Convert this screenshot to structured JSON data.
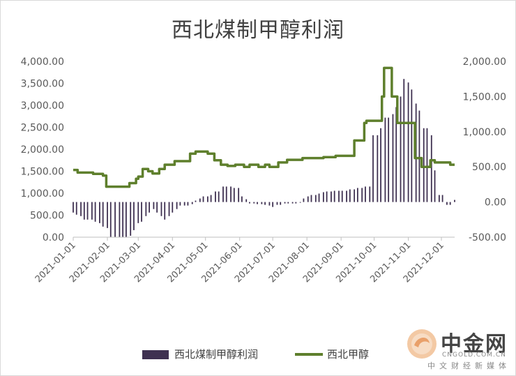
{
  "chart_data": {
    "type": "bar+line",
    "title": "西北煤制甲醇利润",
    "left_axis": {
      "ylim": [
        0,
        4000
      ],
      "ticks": [
        "4,000.00",
        "3,500.00",
        "3,000.00",
        "2,500.00",
        "2,000.00",
        "1,500.00",
        "1,000.00",
        "500.00",
        "0.00"
      ]
    },
    "right_axis": {
      "ylim": [
        -500,
        2000
      ],
      "ticks": [
        "2,000.00",
        "1,500.00",
        "1,000.00",
        "500.00",
        "0.00",
        "-500.00"
      ]
    },
    "x_labels": [
      "2021-01-01",
      "2021-02-01",
      "2021-03-01",
      "2021-04-01",
      "2021-05-01",
      "2021-06-01",
      "2021-07-01",
      "2021-08-01",
      "2021-09-01",
      "2021-10-01",
      "2021-11-01",
      "2021-12-01"
    ],
    "x_label_days": [
      0,
      31,
      59,
      90,
      120,
      151,
      181,
      212,
      243,
      273,
      304,
      334
    ],
    "grid": false,
    "legend_position": "bottom",
    "series": [
      {
        "name": "西北煤制甲醇利润",
        "kind": "bar",
        "axis": "right",
        "color": "#3f3151",
        "day": [
          0,
          3,
          7,
          10,
          13,
          17,
          20,
          24,
          27,
          31,
          34,
          38,
          42,
          45,
          48,
          52,
          55,
          59,
          62,
          66,
          69,
          73,
          76,
          80,
          83,
          87,
          90,
          94,
          97,
          101,
          104,
          108,
          111,
          115,
          118,
          122,
          125,
          129,
          132,
          136,
          139,
          143,
          146,
          150,
          153,
          157,
          160,
          164,
          167,
          171,
          174,
          178,
          181,
          185,
          188,
          192,
          195,
          199,
          202,
          206,
          209,
          213,
          216,
          220,
          223,
          227,
          230,
          234,
          237,
          241,
          244,
          248,
          251,
          255,
          258,
          262,
          265,
          269,
          272,
          276,
          279,
          283,
          286,
          290,
          293,
          297,
          300,
          304,
          307,
          311,
          314,
          318,
          321,
          325,
          328,
          332,
          335,
          339,
          342,
          346
        ],
        "values": [
          -150,
          -180,
          -200,
          -250,
          -250,
          -250,
          -280,
          -300,
          -350,
          -370,
          -500,
          -500,
          -500,
          -500,
          -500,
          -480,
          -400,
          -300,
          -280,
          -200,
          -150,
          -100,
          -150,
          -200,
          -250,
          -200,
          -150,
          -100,
          -50,
          -50,
          -50,
          -30,
          20,
          50,
          80,
          80,
          100,
          150,
          150,
          220,
          220,
          220,
          200,
          200,
          80,
          40,
          -20,
          -20,
          -30,
          -30,
          -40,
          -50,
          -70,
          -40,
          -40,
          -20,
          -20,
          -20,
          -20,
          -10,
          50,
          80,
          100,
          100,
          120,
          140,
          150,
          150,
          160,
          160,
          160,
          160,
          180,
          180,
          200,
          200,
          220,
          220,
          950,
          950,
          1050,
          1200,
          1200,
          1250,
          1350,
          1500,
          1750,
          1700,
          1600,
          1400,
          1300,
          1050,
          1050,
          950,
          450,
          100,
          100,
          -40,
          -40,
          30,
          50,
          30,
          20,
          30,
          10,
          -40,
          -50,
          -50,
          -50
        ]
      },
      {
        "name": "西北甲醇",
        "kind": "line",
        "axis": "left",
        "color": "#5e7f2c",
        "day": [
          0,
          4,
          4,
          11,
          11,
          18,
          18,
          27,
          27,
          30,
          30,
          37,
          37,
          51,
          51,
          57,
          57,
          59,
          59,
          63,
          63,
          68,
          68,
          72,
          72,
          78,
          78,
          83,
          83,
          87,
          87,
          92,
          92,
          99,
          99,
          106,
          106,
          111,
          111,
          122,
          122,
          128,
          128,
          134,
          134,
          140,
          140,
          147,
          147,
          155,
          155,
          160,
          160,
          168,
          168,
          174,
          174,
          178,
          178,
          186,
          186,
          194,
          194,
          208,
          208,
          216,
          216,
          227,
          227,
          238,
          238,
          249,
          249,
          255,
          255,
          260,
          260,
          264,
          264,
          266,
          266,
          270,
          270,
          280,
          280,
          282,
          282,
          289,
          289,
          294,
          294,
          310,
          310,
          316,
          316,
          324,
          324,
          328,
          328,
          342,
          342,
          346
        ],
        "values": [
          1530,
          1530,
          1470,
          1470,
          1470,
          1470,
          1440,
          1440,
          1400,
          1400,
          1150,
          1150,
          1150,
          1150,
          1230,
          1230,
          1330,
          1330,
          1380,
          1380,
          1550,
          1550,
          1500,
          1500,
          1450,
          1450,
          1550,
          1550,
          1650,
          1650,
          1650,
          1650,
          1730,
          1730,
          1730,
          1730,
          1900,
          1900,
          1950,
          1950,
          1900,
          1900,
          1750,
          1750,
          1650,
          1650,
          1620,
          1620,
          1650,
          1650,
          1600,
          1600,
          1650,
          1650,
          1600,
          1600,
          1650,
          1650,
          1600,
          1600,
          1700,
          1700,
          1760,
          1760,
          1800,
          1800,
          1800,
          1800,
          1820,
          1820,
          1850,
          1850,
          1850,
          1850,
          2200,
          2200,
          2200,
          2200,
          2600,
          2600,
          2650,
          2650,
          2650,
          2650,
          3200,
          3200,
          3850,
          3850,
          3200,
          3200,
          2600,
          2600,
          1800,
          1800,
          1600,
          1600,
          1750,
          1750,
          1700,
          1700,
          1650,
          1650
        ]
      }
    ]
  },
  "logo": {
    "name": "中金网",
    "domain": "CNGOLD.COM.CN",
    "slogan": "中文财经新媒体"
  }
}
